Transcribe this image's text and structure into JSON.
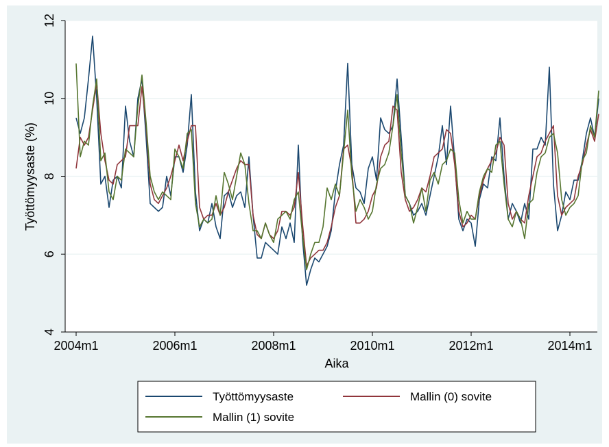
{
  "chart_data": {
    "type": "line",
    "title": "",
    "xlabel": "Aika",
    "ylabel": "Työttömyysaste (%)",
    "ylim": [
      4,
      12
    ],
    "xlim": [
      "2004m1",
      "2014m6"
    ],
    "yticks": [
      "4",
      "6",
      "8",
      "10",
      "12"
    ],
    "xticks": [
      "2004m1",
      "2006m1",
      "2008m1",
      "2010m1",
      "2012m1",
      "2014m1"
    ],
    "grid": "horizontal",
    "legend": "bottom",
    "series": [
      {
        "name": "Työttömyysaste",
        "color": "#1a476f",
        "values": [
          9.5,
          9.1,
          9.5,
          10.5,
          11.6,
          10.0,
          7.8,
          8.0,
          7.2,
          7.9,
          8.0,
          7.7,
          9.8,
          8.9,
          8.5,
          10.0,
          10.5,
          9.0,
          7.3,
          7.2,
          7.1,
          7.2,
          8.0,
          7.5,
          8.5,
          8.5,
          8.1,
          8.8,
          10.1,
          7.6,
          6.6,
          6.9,
          6.8,
          7.3,
          6.7,
          6.4,
          7.5,
          7.6,
          7.2,
          7.5,
          7.6,
          7.2,
          8.5,
          7.0,
          5.9,
          5.9,
          6.3,
          6.2,
          6.1,
          6.0,
          6.7,
          6.4,
          6.8,
          6.3,
          8.8,
          6.4,
          5.2,
          5.6,
          5.9,
          5.8,
          6.0,
          6.2,
          6.6,
          7.6,
          8.3,
          8.8,
          10.9,
          8.3,
          7.7,
          7.6,
          7.3,
          8.2,
          8.5,
          7.9,
          9.5,
          9.2,
          9.1,
          9.3,
          10.5,
          9.0,
          7.5,
          7.3,
          7.0,
          7.1,
          7.3,
          7.0,
          7.5,
          8.0,
          8.5,
          9.3,
          8.3,
          9.8,
          8.4,
          6.9,
          6.6,
          6.9,
          6.8,
          6.2,
          7.4,
          7.8,
          7.7,
          8.5,
          8.4,
          9.5,
          8.0,
          6.9,
          7.3,
          7.1,
          6.8,
          7.3,
          6.9,
          8.7,
          8.7,
          9.0,
          8.8,
          10.8,
          7.8,
          6.6,
          7.0,
          7.6,
          7.4,
          7.9,
          7.9,
          8.4,
          9.1,
          9.5,
          9.0,
          10.0
        ]
      },
      {
        "name": "Mallin (0) sovite",
        "color": "#90353b",
        "values": [
          8.2,
          9.0,
          8.8,
          9.0,
          9.7,
          10.4,
          9.1,
          8.4,
          7.9,
          7.8,
          8.3,
          8.4,
          8.5,
          9.3,
          9.3,
          9.3,
          10.3,
          9.3,
          7.8,
          7.4,
          7.3,
          7.5,
          7.7,
          8.0,
          8.4,
          8.8,
          8.4,
          8.9,
          9.3,
          9.3,
          7.2,
          6.9,
          7.0,
          7.0,
          7.3,
          7.0,
          7.2,
          7.6,
          7.9,
          8.2,
          8.4,
          8.3,
          8.3,
          7.0,
          6.5,
          6.4,
          6.8,
          6.5,
          6.4,
          6.6,
          7.1,
          7.1,
          7.0,
          7.2,
          8.1,
          6.8,
          5.7,
          5.9,
          6.0,
          6.1,
          6.1,
          6.3,
          6.7,
          7.2,
          7.5,
          8.7,
          8.8,
          8.2,
          6.8,
          6.8,
          6.9,
          7.1,
          7.5,
          7.7,
          8.5,
          8.8,
          8.9,
          9.8,
          9.7,
          8.1,
          7.4,
          7.1,
          7.2,
          7.4,
          7.7,
          7.6,
          8.0,
          8.5,
          8.6,
          8.7,
          9.2,
          9.1,
          8.3,
          7.1,
          6.7,
          6.8,
          7.0,
          6.9,
          7.5,
          7.9,
          8.2,
          8.4,
          8.6,
          9.0,
          8.8,
          7.3,
          6.9,
          7.1,
          6.9,
          6.8,
          7.5,
          8.0,
          8.5,
          8.6,
          8.9,
          9.1,
          9.3,
          7.5,
          7.0,
          7.2,
          7.3,
          7.4,
          8.0,
          8.3,
          8.8,
          9.2,
          8.9,
          9.6
        ]
      },
      {
        "name": "Mallin (1) sovite",
        "color": "#55752f",
        "values": [
          10.9,
          8.5,
          8.9,
          8.8,
          9.8,
          10.5,
          8.4,
          8.6,
          7.6,
          7.4,
          8.0,
          7.9,
          8.7,
          8.6,
          8.5,
          9.8,
          10.6,
          9.4,
          8.0,
          7.6,
          7.4,
          7.6,
          7.5,
          7.4,
          8.7,
          8.5,
          8.2,
          9.1,
          9.2,
          7.3,
          6.7,
          6.9,
          6.8,
          6.9,
          7.5,
          7.0,
          8.1,
          7.8,
          7.4,
          8.0,
          8.6,
          8.3,
          7.3,
          6.6,
          6.6,
          6.4,
          6.8,
          6.5,
          6.3,
          6.9,
          7.0,
          7.1,
          6.9,
          7.4,
          7.6,
          6.5,
          5.6,
          6.0,
          6.3,
          6.3,
          6.7,
          7.7,
          7.4,
          7.8,
          7.5,
          8.6,
          9.7,
          8.0,
          7.1,
          7.4,
          7.2,
          6.9,
          7.1,
          7.8,
          8.2,
          8.3,
          8.6,
          9.3,
          10.1,
          8.6,
          7.5,
          7.3,
          6.8,
          7.2,
          7.7,
          7.1,
          7.9,
          8.1,
          7.8,
          8.3,
          8.4,
          8.7,
          8.6,
          7.4,
          6.8,
          7.1,
          6.9,
          6.9,
          7.6,
          8.0,
          8.2,
          8.1,
          8.8,
          8.9,
          7.8,
          6.9,
          6.7,
          7.1,
          6.9,
          6.4,
          7.3,
          7.4,
          8.1,
          8.5,
          8.6,
          9.0,
          9.1,
          8.6,
          7.4,
          7.0,
          7.2,
          7.3,
          7.5,
          8.4,
          8.6,
          9.3,
          9.0,
          10.2
        ]
      }
    ]
  }
}
